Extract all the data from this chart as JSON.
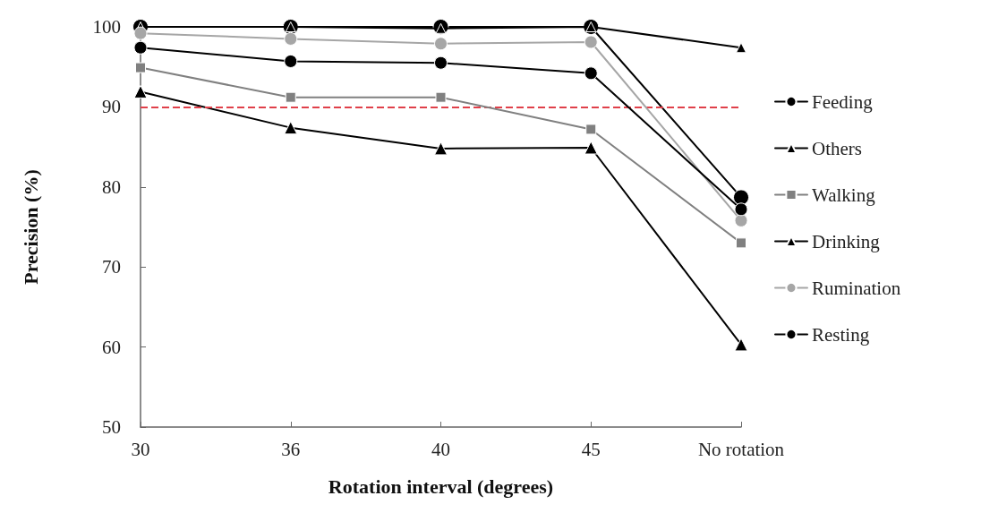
{
  "chart_data": {
    "type": "line",
    "xlabel": "Rotation interval (degrees)",
    "ylabel": "Precision (%)",
    "categories": [
      "30",
      "36",
      "40",
      "45",
      "No rotation"
    ],
    "ylim": [
      50,
      100
    ],
    "yticks": [
      50,
      60,
      70,
      80,
      90,
      100
    ],
    "grid": false,
    "legend": "right",
    "line_style": "solid",
    "series": [
      {
        "name": "Feeding",
        "color": "#000000",
        "marker": "circle",
        "values": [
          100,
          100,
          100,
          100,
          78.7
        ]
      },
      {
        "name": "Others",
        "color": "#000000",
        "marker": "triangle",
        "values": [
          91.9,
          87.4,
          84.8,
          84.9,
          60.3
        ]
      },
      {
        "name": "Walking",
        "color": "#808080",
        "marker": "square",
        "values": [
          94.9,
          91.2,
          91.2,
          87.2,
          73.0
        ]
      },
      {
        "name": "Drinking",
        "color": "#000000",
        "marker": "triangle",
        "values": [
          100,
          100,
          99.8,
          100,
          97.4
        ]
      },
      {
        "name": "Rumination",
        "color": "#a6a6a6",
        "marker": "circle",
        "values": [
          99.2,
          98.5,
          97.9,
          98.1,
          75.8
        ]
      },
      {
        "name": "Resting",
        "color": "#000000",
        "marker": "circle",
        "values": [
          97.4,
          95.7,
          95.5,
          94.2,
          77.2
        ]
      }
    ],
    "ref_lines": [
      {
        "axis": "y",
        "value": 90,
        "color": "#e0404a",
        "line_style": "dashed"
      }
    ]
  }
}
